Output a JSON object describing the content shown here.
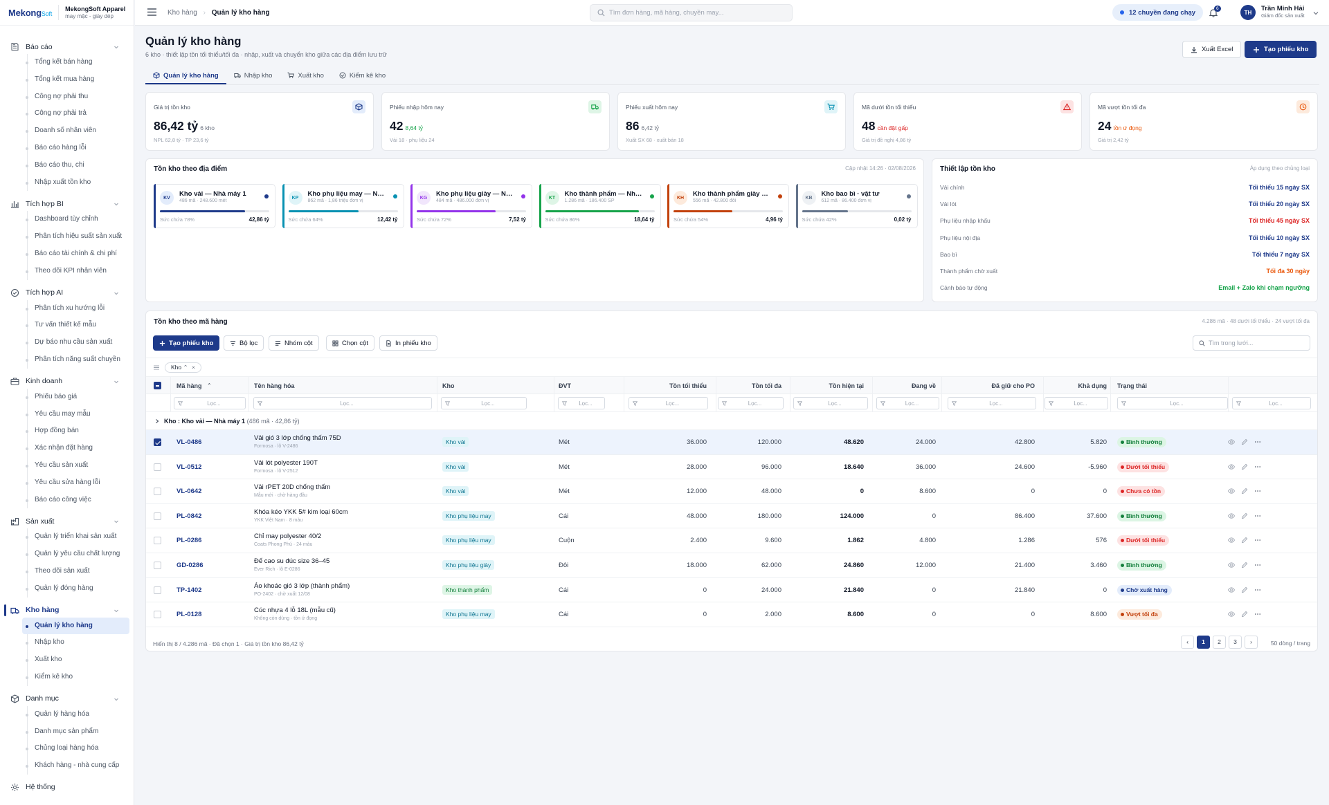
{
  "brand": {
    "logo_main": "Mekong",
    "logo_tail": "Soft",
    "company": "MekongSoft Apparel",
    "tagline": "may mặc - giày dép"
  },
  "nav": [
    {
      "id": "bao-cao",
      "label": "Báo cáo",
      "items": [
        "Tổng kết bán hàng",
        "Tổng kết mua hàng",
        "Công nợ phải thu",
        "Công nợ phải trả",
        "Doanh số nhân viên",
        "Báo cáo hàng lỗi",
        "Báo cáo thu, chi",
        "Nhập xuất tồn kho"
      ]
    },
    {
      "id": "tich-hop-bi",
      "label": "Tích hợp BI",
      "items": [
        "Dashboard tùy chỉnh",
        "Phân tích hiệu suất sản xuất",
        "Báo cáo tài chính & chi phí",
        "Theo dõi KPI nhân viên"
      ]
    },
    {
      "id": "tich-hop-ai",
      "label": "Tích hợp AI",
      "items": [
        "Phân tích xu hướng lỗi",
        "Tư vấn thiết kế mẫu",
        "Dự báo nhu cầu sản xuất",
        "Phân tích năng suất chuyền"
      ]
    },
    {
      "id": "kinh-doanh",
      "label": "Kinh doanh",
      "items": [
        "Phiếu báo giá",
        "Yêu cầu may mẫu",
        "Hợp đồng bán",
        "Xác nhận đặt hàng",
        "Yêu cầu sản xuất",
        "Yêu cầu sửa hàng lỗi",
        "Báo cáo công việc"
      ]
    },
    {
      "id": "san-xuat",
      "label": "Sản xuất",
      "items": [
        "Quản lý triển khai sản xuất",
        "Quản lý yêu cầu chất lượng",
        "Theo dõi sản xuất",
        "Quản lý đóng hàng"
      ]
    },
    {
      "id": "kho-hang",
      "label": "Kho hàng",
      "active": true,
      "items": [
        "Quản lý kho hàng",
        "Nhập kho",
        "Xuất kho",
        "Kiểm kê kho"
      ]
    },
    {
      "id": "danh-muc",
      "label": "Danh mục",
      "items": [
        "Quản lý hàng hóa",
        "Danh mục sản phẩm",
        "Chủng loại hàng hóa",
        "Khách hàng - nhà cung cấp"
      ]
    },
    {
      "id": "he-thong",
      "label": "Hệ thống",
      "items": []
    }
  ],
  "topbar": {
    "crumb_parent": "Kho hàng",
    "crumb_current": "Quản lý kho hàng",
    "search_placeholder": "Tìm đơn hàng, mã hàng, chuyền may...",
    "running_label": "12 chuyền đang chạy",
    "notif_count": "6",
    "user_initials": "TH",
    "user_name": "Trần Minh Hải",
    "user_role": "Giám đốc sản xuất"
  },
  "page": {
    "title": "Quản lý kho hàng",
    "subtitle": "6 kho · thiết lập tồn tối thiểu/tối đa · nhập, xuất và chuyển kho giữa các địa điểm lưu trữ",
    "export_label": "Xuất Excel",
    "create_label": "Tạo phiếu kho"
  },
  "tabs": [
    "Quản lý kho hàng",
    "Nhập kho",
    "Xuất kho",
    "Kiểm kê kho"
  ],
  "kpis": [
    {
      "label": "Giá trị tồn kho",
      "value": "86,42 tỷ",
      "unit": "6 kho",
      "foot": "NPL 62,8 tỷ · TP 23,6 tỷ",
      "icon": "cube-icon"
    },
    {
      "label": "Phiếu nhập hôm nay",
      "value": "42",
      "unit": "8,64 tỷ",
      "foot": "Vải 18 · phụ liệu 24",
      "icon": "truck-icon"
    },
    {
      "label": "Phiếu xuất hôm nay",
      "value": "86",
      "unit": "6,42 tỷ",
      "foot": "Xuất SX 68 · xuất bán 18",
      "icon": "cart-icon"
    },
    {
      "label": "Mã dưới tồn tối thiểu",
      "value": "48",
      "unit": "cần đặt gấp",
      "foot": "Giá trị đề nghị 4,86 tỷ",
      "icon": "warning-icon"
    },
    {
      "label": "Mã vượt tồn tối đa",
      "value": "24",
      "unit": "tồn ứ đọng",
      "foot": "Giá trị 2,42 tỷ",
      "icon": "clock-icon"
    }
  ],
  "locations": {
    "title": "Tồn kho theo địa điểm",
    "updated": "Cập nhật 14:26 · 02/08/2026",
    "items": [
      {
        "abbr": "KV",
        "name": "Kho vải — Nhà máy 1",
        "sub": "486 mã · 248.600 mét",
        "capacity_label": "Sức chứa 78%",
        "capacity": 0.78,
        "amount": "42,86 tỷ",
        "color": "#1e3a8a",
        "bg": "#e3ecfb"
      },
      {
        "abbr": "KP",
        "name": "Kho phụ liệu may — Nhà máy 1",
        "sub": "862 mã · 1,86 triệu đơn vị",
        "capacity_label": "Sức chứa 64%",
        "capacity": 0.64,
        "amount": "12,42 tỷ",
        "color": "#0891b2",
        "bg": "#dff4f8"
      },
      {
        "abbr": "KG",
        "name": "Kho phụ liệu giày — Nhà máy 2",
        "sub": "484 mã · 486.000 đơn vị",
        "capacity_label": "Sức chứa 72%",
        "capacity": 0.72,
        "amount": "7,52 tỷ",
        "color": "#9333ea",
        "bg": "#f1e6fc"
      },
      {
        "abbr": "KT",
        "name": "Kho thành phẩm — Nhà máy 1",
        "sub": "1.286 mã · 186.400 SP",
        "capacity_label": "Sức chứa 86%",
        "capacity": 0.86,
        "amount": "18,64 tỷ",
        "color": "#16a34a",
        "bg": "#def5e6"
      },
      {
        "abbr": "KH",
        "name": "Kho thành phẩm giày — Nhà máy 2",
        "sub": "556 mã · 42.800 đôi",
        "capacity_label": "Sức chứa 54%",
        "capacity": 0.54,
        "amount": "4,96 tỷ",
        "color": "#c2410c",
        "bg": "#fdeadc"
      },
      {
        "abbr": "KB",
        "name": "Kho bao bì · vật tư",
        "sub": "612 mã · 86.400 đơn vị",
        "capacity_label": "Sức chứa 42%",
        "capacity": 0.42,
        "amount": "0,02 tỷ",
        "color": "#64748b",
        "bg": "#eef1f4"
      }
    ]
  },
  "settings": {
    "title": "Thiết lập tồn kho",
    "note": "Áp dụng theo chủng loại",
    "rows": [
      {
        "label": "Vải chính",
        "value": "Tối thiểu 15 ngày SX",
        "color": "#1e3a8a"
      },
      {
        "label": "Vải lót",
        "value": "Tối thiểu 20 ngày SX",
        "color": "#1e3a8a"
      },
      {
        "label": "Phụ liệu nhập khẩu",
        "value": "Tối thiểu 45 ngày SX",
        "color": "#dc2626"
      },
      {
        "label": "Phụ liệu nội địa",
        "value": "Tối thiểu 10 ngày SX",
        "color": "#1e3a8a"
      },
      {
        "label": "Bao bì",
        "value": "Tối thiểu 7 ngày SX",
        "color": "#1e3a8a"
      },
      {
        "label": "Thành phẩm chờ xuất",
        "value": "Tối đa 30 ngày",
        "color": "#ea580c"
      },
      {
        "label": "Cảnh báo tự động",
        "value": "Email + Zalo khi chạm ngưỡng",
        "color": "#16a34a"
      }
    ]
  },
  "table": {
    "title": "Tồn kho theo mã hàng",
    "summary": "4.286 mã · 48 dưới tối thiểu · 24 vượt tối đa",
    "create_label": "Tạo phiếu kho",
    "filter_label": "Bộ lọc",
    "group_label": "Nhóm cột",
    "columns_label": "Chọn cột",
    "print_label": "In phiếu kho",
    "search_placeholder": "Tìm trong lưới...",
    "chip_label": "Kho",
    "filter_placeholder": "Lọc...",
    "headers": {
      "code": "Mã hàng",
      "name": "Tên hàng hóa",
      "wh": "Kho",
      "unit": "ĐVT",
      "min": "Tồn tối thiểu",
      "max": "Tồn tối đa",
      "cur": "Tồn hiện tại",
      "incoming": "Đang về",
      "po": "Đã giữ cho PO",
      "avail": "Khả dụng",
      "status": "Trạng thái"
    },
    "group_text": "Kho :",
    "group_name": "Kho vải — Nhà máy 1",
    "group_meta": "(486 mã · 42,86 tỷ)",
    "rows": [
      {
        "code": "VL-0486",
        "name": "Vải gió 3 lớp chống thấm 75D",
        "sub": "Formosa · lô V-2486",
        "wh": "Kho vải",
        "unit": "Mét",
        "min": "36.000",
        "max": "120.000",
        "cur": "48.620",
        "incoming": "24.000",
        "po": "42.800",
        "avail": "5.820",
        "status": "Bình thường",
        "tone": "ok",
        "selected": true
      },
      {
        "code": "VL-0512",
        "name": "Vải lót polyester 190T",
        "sub": "Formosa · lô V-2512",
        "wh": "Kho vải",
        "unit": "Mét",
        "min": "28.000",
        "max": "96.000",
        "cur": "18.640",
        "incoming": "36.000",
        "po": "24.600",
        "avail": "-5.960",
        "status": "Dưới tối thiểu",
        "tone": "bad"
      },
      {
        "code": "VL-0642",
        "name": "Vải rPET 20D chống thấm",
        "sub": "Mẫu mới · chờ hàng đầu",
        "wh": "Kho vải",
        "unit": "Mét",
        "min": "12.000",
        "max": "48.000",
        "cur": "0",
        "incoming": "8.600",
        "po": "0",
        "avail": "0",
        "status": "Chưa có tồn",
        "tone": "bad"
      },
      {
        "code": "PL-0842",
        "name": "Khóa kéo YKK 5# kim loại 60cm",
        "sub": "YKK Việt Nam · 8 màu",
        "wh": "Kho phụ liệu may",
        "unit": "Cái",
        "min": "48.000",
        "max": "180.000",
        "cur": "124.000",
        "incoming": "0",
        "po": "86.400",
        "avail": "37.600",
        "status": "Bình thường",
        "tone": "ok"
      },
      {
        "code": "PL-0286",
        "name": "Chỉ may polyester 40/2",
        "sub": "Coats Phong Phú · 24 màu",
        "wh": "Kho phụ liệu may",
        "unit": "Cuộn",
        "min": "2.400",
        "max": "9.600",
        "cur": "1.862",
        "incoming": "4.800",
        "po": "1.286",
        "avail": "576",
        "status": "Dưới tối thiểu",
        "tone": "bad"
      },
      {
        "code": "GD-0286",
        "name": "Đế cao su đúc size 36–45",
        "sub": "Ever Rich · lô E-0286",
        "wh": "Kho phụ liệu giày",
        "unit": "Đôi",
        "min": "18.000",
        "max": "62.000",
        "cur": "24.860",
        "incoming": "12.000",
        "po": "21.400",
        "avail": "3.460",
        "status": "Bình thường",
        "tone": "ok"
      },
      {
        "code": "TP-1402",
        "name": "Áo khoác gió 3 lớp (thành phẩm)",
        "sub": "PO-2402 · chờ xuất 12/08",
        "wh": "Kho thành phẩm",
        "unit": "Cái",
        "min": "0",
        "max": "24.000",
        "cur": "21.840",
        "incoming": "0",
        "po": "21.840",
        "avail": "0",
        "status": "Chờ xuất hàng",
        "tone": "info"
      },
      {
        "code": "PL-0128",
        "name": "Cúc nhựa 4 lỗ 18L (mẫu cũ)",
        "sub": "Không còn dùng · tồn ứ đọng",
        "wh": "Kho phụ liệu may",
        "unit": "Cái",
        "min": "0",
        "max": "2.000",
        "cur": "8.600",
        "incoming": "0",
        "po": "0",
        "avail": "8.600",
        "status": "Vượt tối đa",
        "tone": "warn"
      }
    ],
    "footer": "Hiển thị 8 / 4.286 mã · Đã chọn 1 · Giá trị tồn kho 86,42 tỷ",
    "pages": [
      "‹",
      "1",
      "2",
      "3",
      "›"
    ],
    "current_page": "1",
    "per_page": "50 dòng / trang"
  }
}
